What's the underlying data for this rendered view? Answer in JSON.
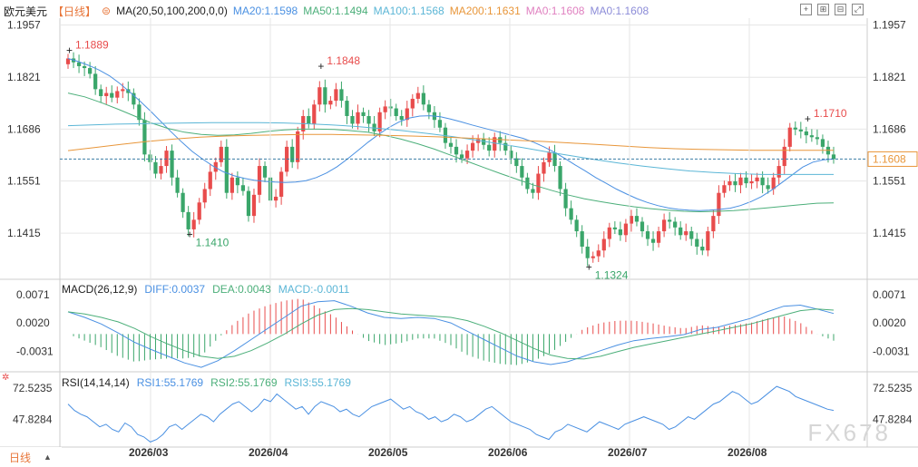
{
  "header": {
    "symbol": "欧元美元",
    "period": "【日线】",
    "ma_label": "MA(20,50,100,200,0,0)",
    "ma_values": [
      {
        "label": "MA20:1.1598",
        "color": "#4a90e2"
      },
      {
        "label": "MA50:1.1494",
        "color": "#4caf7a"
      },
      {
        "label": "MA100:1.1568",
        "color": "#5bb6d6"
      },
      {
        "label": "MA200:1.1631",
        "color": "#e8963a"
      },
      {
        "label": "MA0:1.1608",
        "color": "#e080c0"
      },
      {
        "label": "MA0:1.1608",
        "color": "#8c8cd8"
      }
    ]
  },
  "macd_header": {
    "label": "MACD(26,12,9)",
    "diff": "DIFF:0.0037",
    "dea": "DEA:0.0043",
    "macd": "MACD:-0.0011"
  },
  "rsi_header": {
    "label": "RSI(14,14,14)",
    "rsi1": "RSI1:55.1769",
    "rsi2": "RSI2:55.1769",
    "rsi3": "RSI3:55.1769"
  },
  "bottom": {
    "period_tab": "日线"
  },
  "watermark": "FX678",
  "colors": {
    "up": "#e84c4c",
    "down": "#3aa66a",
    "grid": "#e6e6e6"
  },
  "chart_data": [
    {
      "type": "candlestick",
      "title": "欧元美元 日线",
      "ylim": [
        1.1295,
        1.1975
      ],
      "yticks": [
        "1.1957",
        "1.1821",
        "1.1686",
        "1.1551",
        "1.1415"
      ],
      "x_labels": [
        "2026/03",
        "2026/04",
        "2026/05",
        "2026/06",
        "2026/07",
        "2026/08"
      ],
      "annotations": [
        {
          "label": "1.1889",
          "value": 1.1889
        },
        {
          "label": "1.1410",
          "value": 1.141
        },
        {
          "label": "1.1848",
          "value": 1.1848
        },
        {
          "label": "1.1324",
          "value": 1.1324
        },
        {
          "label": "1.1710",
          "value": 1.171
        }
      ],
      "last_price": {
        "label": "1.1608",
        "value": 1.1608
      },
      "close": [
        1.187,
        1.186,
        1.185,
        1.1845,
        1.183,
        1.179,
        1.1772,
        1.178,
        1.1768,
        1.1785,
        1.179,
        1.178,
        1.175,
        1.171,
        1.162,
        1.16,
        1.157,
        1.159,
        1.163,
        1.156,
        1.152,
        1.147,
        1.1425,
        1.145,
        1.1495,
        1.153,
        1.1575,
        1.16,
        1.164,
        1.152,
        1.156,
        1.154,
        1.1525,
        1.146,
        1.1515,
        1.159,
        1.156,
        1.15,
        1.151,
        1.1575,
        1.164,
        1.16,
        1.168,
        1.172,
        1.17,
        1.175,
        1.1795,
        1.175,
        1.176,
        1.179,
        1.176,
        1.172,
        1.17,
        1.173,
        1.172,
        1.17,
        1.168,
        1.173,
        1.1745,
        1.174,
        1.172,
        1.171,
        1.174,
        1.1765,
        1.178,
        1.175,
        1.173,
        1.171,
        1.169,
        1.165,
        1.164,
        1.162,
        1.161,
        1.163,
        1.165,
        1.166,
        1.1645,
        1.163,
        1.1665,
        1.165,
        1.163,
        1.161,
        1.159,
        1.156,
        1.153,
        1.152,
        1.157,
        1.16,
        1.1625,
        1.159,
        1.153,
        1.148,
        1.145,
        1.142,
        1.138,
        1.135,
        1.1355,
        1.137,
        1.14,
        1.143,
        1.1425,
        1.141,
        1.144,
        1.146,
        1.1445,
        1.142,
        1.14,
        1.139,
        1.142,
        1.145,
        1.1445,
        1.143,
        1.141,
        1.142,
        1.14,
        1.138,
        1.137,
        1.142,
        1.146,
        1.152,
        1.154,
        1.155,
        1.154,
        1.156,
        1.1545,
        1.155,
        1.156,
        1.154,
        1.153,
        1.156,
        1.159,
        1.164,
        1.169,
        1.1685,
        1.168,
        1.167,
        1.1665,
        1.166,
        1.164,
        1.162,
        1.1608
      ],
      "series": [
        {
          "name": "MA20",
          "color": "#4a90e2",
          "values": [
            1.187,
            1.1862,
            1.1852,
            1.184,
            1.1825,
            1.1805,
            1.1782,
            1.1758,
            1.1732,
            1.1705,
            1.1678,
            1.1652,
            1.1628,
            1.1608,
            1.159,
            1.1575,
            1.1565,
            1.1558,
            1.1553,
            1.155,
            1.1548,
            1.1547,
            1.1548,
            1.1552,
            1.156,
            1.1572,
            1.1588,
            1.1608,
            1.163,
            1.1652,
            1.1672,
            1.169,
            1.1705,
            1.1715,
            1.172,
            1.1721,
            1.1718,
            1.1712,
            1.1705,
            1.1697,
            1.169,
            1.1683,
            1.1676,
            1.1669,
            1.1662,
            1.1652,
            1.164,
            1.1626,
            1.161,
            1.1593,
            1.1577,
            1.156,
            1.1545,
            1.153,
            1.1517,
            1.1505,
            1.1495,
            1.1487,
            1.1481,
            1.1477,
            1.1475,
            1.1474,
            1.1475,
            1.1477,
            1.148,
            1.1487,
            1.1497,
            1.151,
            1.1527,
            1.1547,
            1.1567,
            1.1587,
            1.16,
            1.1606,
            1.1608
          ]
        },
        {
          "name": "MA50",
          "color": "#4caf7a",
          "values": [
            1.178,
            1.177,
            1.1755,
            1.1738,
            1.172,
            1.1702,
            1.1688,
            1.1678,
            1.1672,
            1.167,
            1.1671,
            1.1675,
            1.168,
            1.1684,
            1.1686,
            1.1686,
            1.1685,
            1.1682,
            1.1678,
            1.167,
            1.166,
            1.1648,
            1.1634,
            1.1618,
            1.1602,
            1.1586,
            1.157,
            1.1555,
            1.154,
            1.1527,
            1.1515,
            1.1505,
            1.1497,
            1.149,
            1.1484,
            1.1479,
            1.1475,
            1.1472,
            1.1471,
            1.1472,
            1.1474,
            1.1477,
            1.1481,
            1.1485,
            1.1489,
            1.1493,
            1.1494
          ]
        },
        {
          "name": "MA100",
          "color": "#5bb6d6",
          "values": [
            1.1695,
            1.1697,
            1.1699,
            1.17,
            1.1701,
            1.1702,
            1.1703,
            1.1703,
            1.1703,
            1.1702,
            1.17,
            1.1697,
            1.1693,
            1.1688,
            1.1682,
            1.1675,
            1.1667,
            1.1658,
            1.1648,
            1.1638,
            1.1627,
            1.1617,
            1.1607,
            1.1598,
            1.159,
            1.1583,
            1.1577,
            1.1573,
            1.157,
            1.1568,
            1.1568,
            1.1568,
            1.1568
          ]
        },
        {
          "name": "MA200",
          "color": "#e8963a",
          "values": [
            1.163,
            1.1638,
            1.1646,
            1.1654,
            1.166,
            1.1665,
            1.1668,
            1.167,
            1.1671,
            1.1672,
            1.1672,
            1.1671,
            1.167,
            1.1668,
            1.1666,
            1.1663,
            1.166,
            1.1657,
            1.1654,
            1.165,
            1.1646,
            1.1642,
            1.1638,
            1.1635,
            1.1633,
            1.1632,
            1.1631,
            1.1631,
            1.1631,
            1.1631
          ]
        }
      ]
    },
    {
      "type": "macd",
      "label": "MACD(26,12,9)",
      "ylim": [
        -0.0068,
        0.0092
      ],
      "yticks": [
        "0.0071",
        "0.0020",
        "-0.0031"
      ],
      "diff": [
        0.004,
        0.003,
        0.0018,
        0.0002,
        -0.0015,
        -0.0028,
        -0.004,
        -0.0052,
        -0.006,
        -0.0048,
        -0.003,
        -0.001,
        0.001,
        0.003,
        0.005,
        0.0058,
        0.006,
        0.005,
        0.0038,
        0.003,
        0.0028,
        0.003,
        0.0028,
        0.002,
        0.0005,
        -0.001,
        -0.0025,
        -0.004,
        -0.005,
        -0.0055,
        -0.005,
        -0.004,
        -0.003,
        -0.002,
        -0.0012,
        -0.0008,
        -0.0005,
        -0.0001,
        0.0008,
        0.0012,
        0.002,
        0.0028,
        0.004,
        0.005,
        0.0052,
        0.0045,
        0.0037
      ],
      "dea": [
        0.004,
        0.0036,
        0.003,
        0.0022,
        0.001,
        -0.0005,
        -0.0018,
        -0.003,
        -0.004,
        -0.0044,
        -0.004,
        -0.003,
        -0.0016,
        0.0,
        0.0018,
        0.0034,
        0.0044,
        0.0046,
        0.0044,
        0.004,
        0.0036,
        0.0034,
        0.0032,
        0.003,
        0.0024,
        0.0014,
        0.0002,
        -0.0012,
        -0.0026,
        -0.0038,
        -0.0044,
        -0.0045,
        -0.004,
        -0.0032,
        -0.0024,
        -0.0018,
        -0.0012,
        -0.0006,
        0.0,
        0.0006,
        0.0012,
        0.0018,
        0.0026,
        0.0034,
        0.0042,
        0.0045,
        0.0043
      ]
    },
    {
      "type": "line",
      "label": "RSI(14,14,14)",
      "ylim": [
        26,
        82
      ],
      "yticks": [
        "72.5235",
        "47.8284"
      ],
      "values": [
        60,
        55,
        52,
        50,
        46,
        42,
        44,
        40,
        38,
        45,
        42,
        36,
        34,
        30,
        32,
        36,
        42,
        44,
        40,
        44,
        48,
        52,
        50,
        46,
        52,
        56,
        60,
        62,
        58,
        54,
        58,
        64,
        62,
        68,
        64,
        60,
        56,
        58,
        52,
        58,
        62,
        60,
        58,
        54,
        56,
        52,
        50,
        54,
        58,
        60,
        62,
        64,
        60,
        56,
        58,
        54,
        52,
        48,
        50,
        46,
        48,
        52,
        50,
        46,
        48,
        52,
        56,
        58,
        54,
        50,
        46,
        44,
        42,
        40,
        36,
        34,
        32,
        38,
        40,
        44,
        42,
        40,
        38,
        42,
        46,
        44,
        42,
        40,
        44,
        46,
        48,
        50,
        48,
        46,
        44,
        40,
        42,
        46,
        50,
        48,
        52,
        56,
        60,
        62,
        66,
        70,
        68,
        64,
        60,
        62,
        66,
        70,
        74,
        72,
        70,
        66,
        64,
        62,
        60,
        58,
        56,
        55
      ]
    }
  ]
}
